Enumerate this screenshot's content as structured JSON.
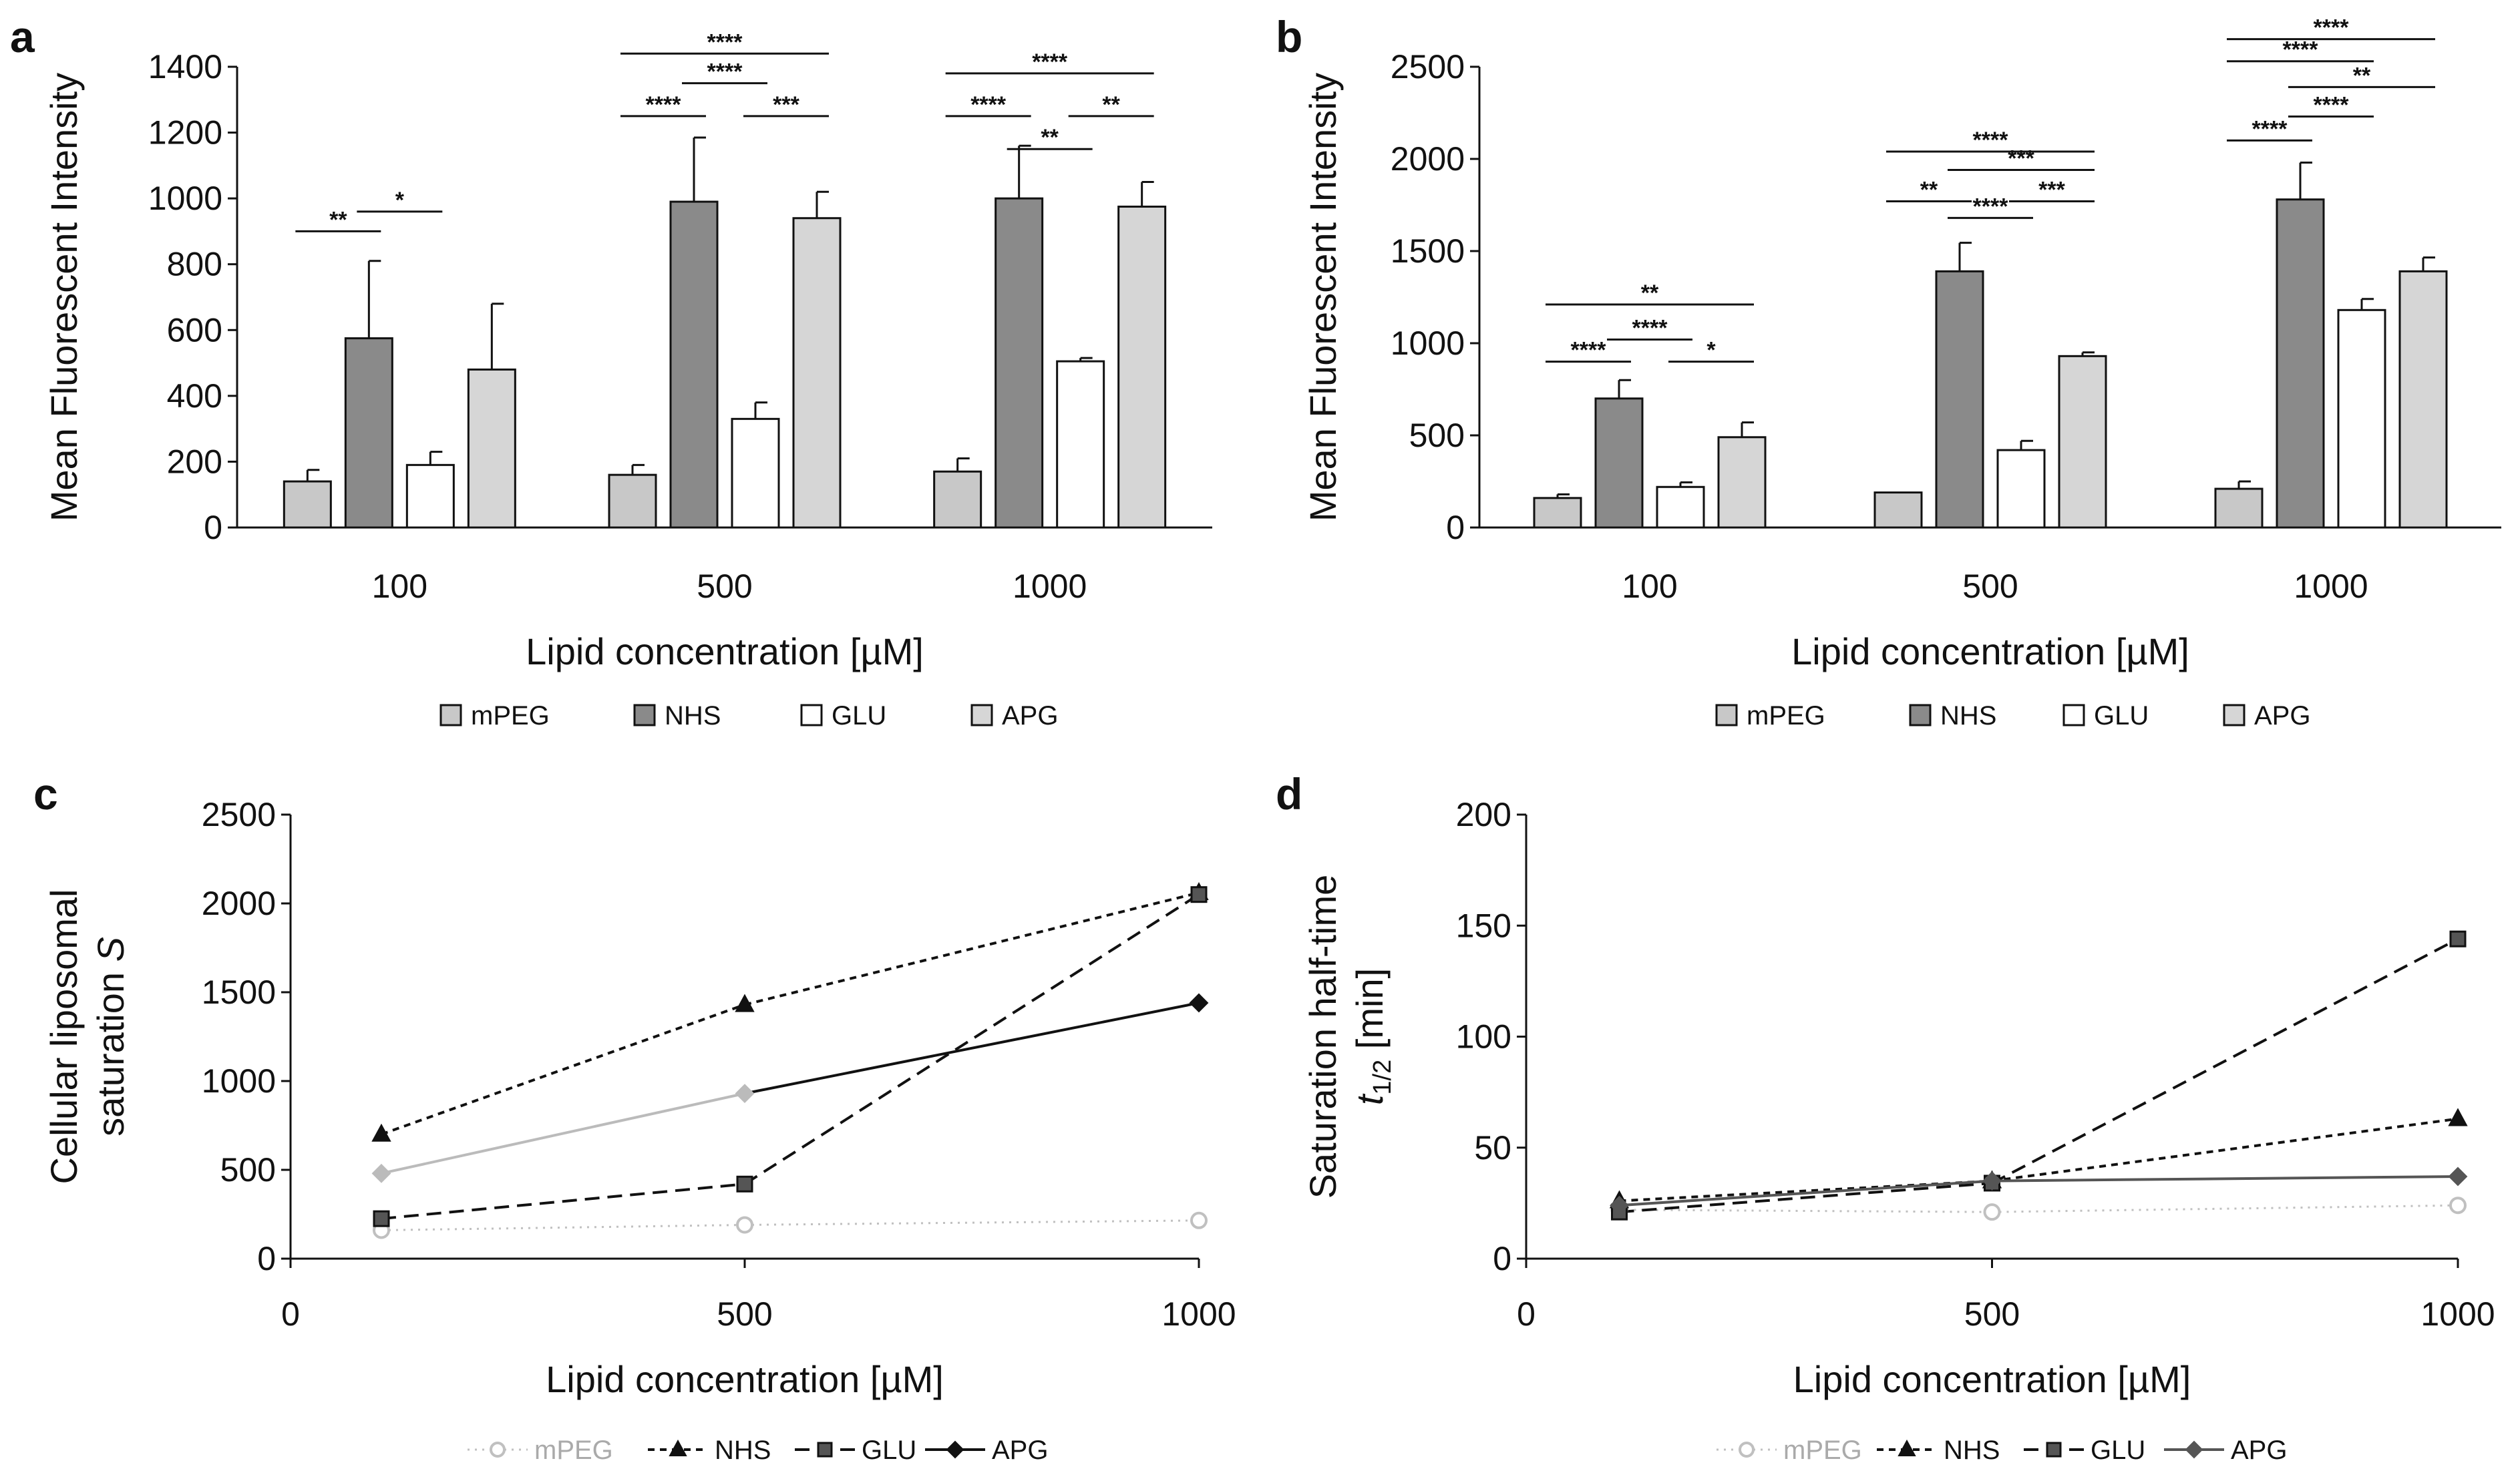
{
  "chart_data": [
    {
      "panel": "a",
      "type": "bar",
      "title": "",
      "ylabel": "Mean Fluorescent Intensity",
      "xlabel": "Lipid concentration [µM]",
      "categories": [
        "100",
        "500",
        "1000"
      ],
      "ylim": [
        0,
        1400
      ],
      "yticks": [
        0,
        200,
        400,
        600,
        800,
        1000,
        1200,
        1400
      ],
      "legend_position": "bottom",
      "series": [
        {
          "name": "mPEG",
          "color": "#c8c8c8",
          "values": [
            140,
            160,
            170
          ],
          "errors": [
            35,
            30,
            40
          ]
        },
        {
          "name": "NHS",
          "color": "#8a8a8a",
          "values": [
            575,
            990,
            1000
          ],
          "errors": [
            235,
            195,
            160
          ]
        },
        {
          "name": "GLU",
          "color": "#ffffff",
          "values": [
            190,
            330,
            505
          ],
          "errors": [
            40,
            50,
            10
          ]
        },
        {
          "name": "APG",
          "color": "#d6d6d6",
          "values": [
            480,
            940,
            975
          ],
          "errors": [
            200,
            80,
            75
          ]
        }
      ],
      "significance": [
        {
          "group": 0,
          "from": 0,
          "to": 1,
          "label": "**",
          "value": 900
        },
        {
          "group": 0,
          "from": 1,
          "to": 2,
          "label": "*",
          "value": 960
        },
        {
          "group": 1,
          "from": 0,
          "to": 1,
          "label": "****",
          "value": 1250
        },
        {
          "group": 1,
          "from": 1,
          "to": 2,
          "label": "****",
          "value": 1350
        },
        {
          "group": 1,
          "from": 2,
          "to": 3,
          "label": "***",
          "value": 1250
        },
        {
          "group": 1,
          "from": 0,
          "to": 3,
          "label": "****",
          "value": 1440
        },
        {
          "group": 2,
          "from": 0,
          "to": 1,
          "label": "****",
          "value": 1250
        },
        {
          "group": 2,
          "from": 1,
          "to": 2,
          "label": "**",
          "value": 1150
        },
        {
          "group": 2,
          "from": 2,
          "to": 3,
          "label": "**",
          "value": 1250
        },
        {
          "group": 2,
          "from": 0,
          "to": 3,
          "label": "****",
          "value": 1380
        }
      ]
    },
    {
      "panel": "b",
      "type": "bar",
      "title": "",
      "ylabel": "Mean Fluorescent Intensity",
      "xlabel": "Lipid concentration [µM]",
      "categories": [
        "100",
        "500",
        "1000"
      ],
      "ylim": [
        0,
        2500
      ],
      "yticks": [
        0,
        500,
        1000,
        1500,
        2000,
        2500
      ],
      "legend_position": "bottom",
      "series": [
        {
          "name": "mPEG",
          "color": "#c8c8c8",
          "values": [
            160,
            190,
            210
          ],
          "errors": [
            20,
            0,
            40
          ]
        },
        {
          "name": "NHS",
          "color": "#8a8a8a",
          "values": [
            700,
            1390,
            1780
          ],
          "errors": [
            100,
            155,
            200
          ]
        },
        {
          "name": "GLU",
          "color": "#ffffff",
          "values": [
            220,
            420,
            1180
          ],
          "errors": [
            25,
            50,
            60
          ]
        },
        {
          "name": "APG",
          "color": "#d6d6d6",
          "values": [
            490,
            930,
            1390
          ],
          "errors": [
            80,
            20,
            75
          ]
        }
      ],
      "significance": [
        {
          "group": 0,
          "from": 0,
          "to": 1,
          "label": "****",
          "value": 900
        },
        {
          "group": 0,
          "from": 1,
          "to": 2,
          "label": "****",
          "value": 1020
        },
        {
          "group": 0,
          "from": 2,
          "to": 3,
          "label": "*",
          "value": 900
        },
        {
          "group": 0,
          "from": 0,
          "to": 3,
          "label": "**",
          "value": 1210
        },
        {
          "group": 1,
          "from": 0,
          "to": 1,
          "label": "**",
          "value": 1770
        },
        {
          "group": 1,
          "from": 1,
          "to": 2,
          "label": "****",
          "value": 1680
        },
        {
          "group": 1,
          "from": 2,
          "to": 3,
          "label": "***",
          "value": 1770
        },
        {
          "group": 1,
          "from": 1,
          "to": 3,
          "label": "***",
          "value": 1940
        },
        {
          "group": 1,
          "from": 0,
          "to": 3,
          "label": "****",
          "value": 2040
        },
        {
          "group": 2,
          "from": 0,
          "to": 1,
          "label": "****",
          "value": 2100
        },
        {
          "group": 2,
          "from": 1,
          "to": 2,
          "label": "****",
          "value": 2230
        },
        {
          "group": 2,
          "from": 1,
          "to": 3,
          "label": "**",
          "value": 2390
        },
        {
          "group": 2,
          "from": 0,
          "to": 2,
          "label": "****",
          "value": 2530
        },
        {
          "group": 2,
          "from": 0,
          "to": 3,
          "label": "****",
          "value": 2650
        }
      ]
    },
    {
      "panel": "c",
      "type": "line",
      "title": "",
      "ylabel_line1": "Cellular liposomal",
      "ylabel_line2": "saturation ",
      "ylabel_symbol": "S",
      "xlabel": "Lipid concentration [µM]",
      "x": [
        100,
        500,
        1000
      ],
      "xlim": [
        0,
        1000
      ],
      "xticks": [
        0,
        500,
        1000
      ],
      "ylim": [
        0,
        2500
      ],
      "yticks": [
        0,
        500,
        1000,
        1500,
        2000,
        2500
      ],
      "legend_position": "bottom",
      "series": [
        {
          "name": "mPEG",
          "values": [
            160,
            190,
            215
          ],
          "color": "#c0c0c0",
          "marker": "circle-open",
          "dash": "dotted",
          "width": 3
        },
        {
          "name": "NHS",
          "values": [
            700,
            1430,
            2060
          ],
          "color": "#111111",
          "marker": "triangle",
          "dash": "short",
          "width": 4
        },
        {
          "name": "GLU",
          "values": [
            225,
            420,
            2050
          ],
          "color": "#111111",
          "marker": "square",
          "dash": "long",
          "width": 4
        },
        {
          "name": "APG",
          "values": [
            480,
            930,
            1440
          ],
          "color": "#111111",
          "marker": "diamond",
          "dash": "solid",
          "width": 4,
          "segment_colors": [
            "#bbbbbb",
            "#111111"
          ],
          "marker_colors": [
            "#bbbbbb",
            "#bbbbbb",
            "#111111"
          ]
        }
      ]
    },
    {
      "panel": "d",
      "type": "line",
      "title": "",
      "ylabel_line1": "Saturation half-time",
      "ylabel_symbol": "t",
      "ylabel_sub": "1/2",
      "ylabel_unit": " [min]",
      "xlabel": "Lipid concentration [µM]",
      "x": [
        100,
        500,
        1000
      ],
      "xlim": [
        0,
        1000
      ],
      "xticks": [
        0,
        500,
        1000
      ],
      "ylim": [
        0,
        200
      ],
      "yticks": [
        0,
        50,
        100,
        150,
        200
      ],
      "legend_position": "bottom",
      "series": [
        {
          "name": "mPEG",
          "values": [
            22,
            21,
            24
          ],
          "color": "#c0c0c0",
          "marker": "circle-open",
          "dash": "dotted",
          "width": 3
        },
        {
          "name": "NHS",
          "values": [
            26,
            35,
            63
          ],
          "color": "#111111",
          "marker": "triangle",
          "dash": "short",
          "width": 4
        },
        {
          "name": "GLU",
          "values": [
            21,
            34,
            144
          ],
          "color": "#111111",
          "marker": "square",
          "dash": "long",
          "width": 4
        },
        {
          "name": "APG",
          "values": [
            24,
            35,
            37
          ],
          "color": "#555555",
          "marker": "diamond",
          "dash": "solid",
          "width": 4
        }
      ]
    }
  ]
}
